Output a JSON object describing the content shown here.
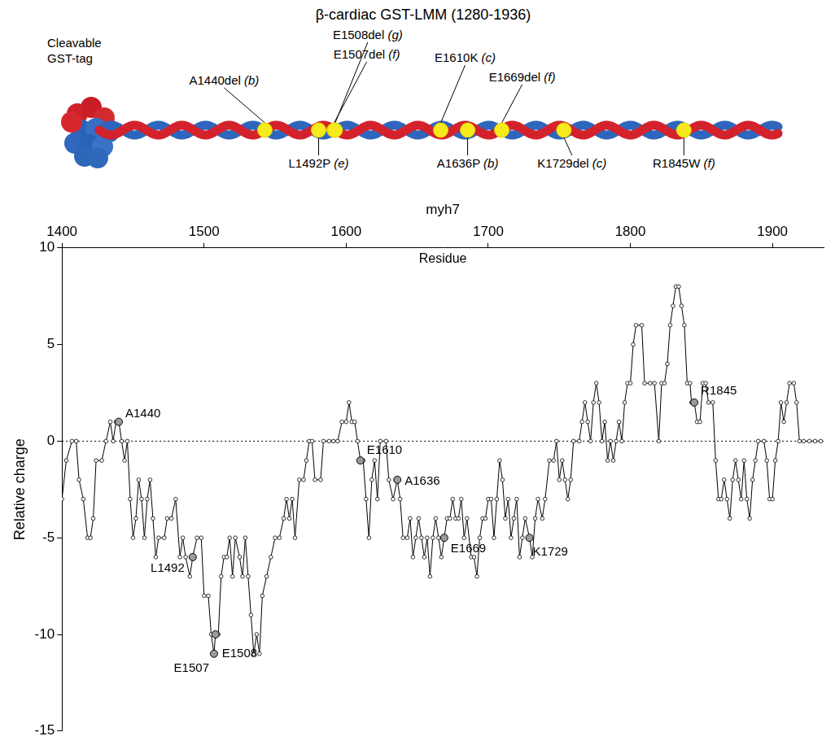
{
  "diagram": {
    "title": "β-cardiac GST-LMM (1280-1936)",
    "tag_label": "Cleavable GST-tag",
    "range": [
      1280,
      1936
    ],
    "mutations": [
      {
        "label": "A1440del",
        "heptad": "(b)",
        "residue": 1440,
        "side": "above"
      },
      {
        "label": "L1492P",
        "heptad": "(e)",
        "residue": 1492,
        "side": "below"
      },
      {
        "label": "E1507del",
        "heptad": "(f)",
        "residue": 1507,
        "side": "above"
      },
      {
        "label": "E1508del",
        "heptad": "(g)",
        "residue": 1508,
        "side": "above"
      },
      {
        "label": "E1610K",
        "heptad": "(c)",
        "residue": 1610,
        "side": "above"
      },
      {
        "label": "A1636P",
        "heptad": "(b)",
        "residue": 1636,
        "side": "below"
      },
      {
        "label": "E1669del",
        "heptad": "(f)",
        "residue": 1669,
        "side": "above"
      },
      {
        "label": "K1729del",
        "heptad": "(c)",
        "residue": 1729,
        "side": "below"
      },
      {
        "label": "R1845W",
        "heptad": "(f)",
        "residue": 1845,
        "side": "below"
      }
    ]
  },
  "chart_data": {
    "type": "line",
    "x_title": "myh7",
    "x_subtitle": "Residue",
    "y_title": "Relative charge",
    "color": "#000000",
    "marker": "circle",
    "line_style": "solid",
    "grid": false,
    "xlim": [
      1400,
      1936
    ],
    "xticks": [
      1400,
      1500,
      1600,
      1700,
      1800,
      1900
    ],
    "ylim": [
      -15,
      10
    ],
    "yticks": [
      -15,
      -10,
      -5,
      0,
      5,
      10
    ],
    "hlines": [
      0
    ],
    "x": [
      1400,
      1403,
      1407,
      1410,
      1412,
      1415,
      1418,
      1420,
      1422,
      1424,
      1428,
      1431,
      1434,
      1436,
      1438,
      1440,
      1442,
      1444,
      1446,
      1448,
      1450,
      1452,
      1454,
      1456,
      1458,
      1460,
      1462,
      1464,
      1466,
      1468,
      1472,
      1474,
      1477,
      1480,
      1483,
      1485,
      1487,
      1490,
      1492,
      1495,
      1498,
      1500,
      1503,
      1505,
      1507,
      1508,
      1510,
      1512,
      1514,
      1516,
      1518,
      1520,
      1522,
      1525,
      1527,
      1529,
      1531,
      1533,
      1535,
      1537,
      1539,
      1541,
      1544,
      1547,
      1550,
      1553,
      1556,
      1558,
      1560,
      1562,
      1564,
      1567,
      1570,
      1572,
      1574,
      1576,
      1578,
      1582,
      1584,
      1588,
      1591,
      1594,
      1597,
      1600,
      1602,
      1604,
      1606,
      1608,
      1610,
      1612,
      1614,
      1616,
      1618,
      1620,
      1622,
      1624,
      1628,
      1630,
      1633,
      1636,
      1638,
      1640,
      1643,
      1645,
      1647,
      1649,
      1651,
      1653,
      1655,
      1657,
      1659,
      1661,
      1663,
      1665,
      1667,
      1669,
      1671,
      1673,
      1675,
      1677,
      1679,
      1681,
      1683,
      1685,
      1688,
      1690,
      1692,
      1694,
      1696,
      1698,
      1700,
      1702,
      1704,
      1706,
      1708,
      1710,
      1712,
      1714,
      1716,
      1718,
      1720,
      1722,
      1724,
      1726,
      1729,
      1731,
      1733,
      1735,
      1738,
      1740,
      1743,
      1746,
      1748,
      1750,
      1752,
      1754,
      1756,
      1758,
      1760,
      1764,
      1766,
      1768,
      1770,
      1772,
      1774,
      1776,
      1778,
      1780,
      1782,
      1784,
      1786,
      1788,
      1790,
      1792,
      1794,
      1796,
      1798,
      1800,
      1802,
      1804,
      1808,
      1810,
      1814,
      1817,
      1820,
      1822,
      1824,
      1826,
      1828,
      1830,
      1832,
      1834,
      1836,
      1838,
      1840,
      1842,
      1843,
      1845,
      1847,
      1849,
      1851,
      1853,
      1855,
      1858,
      1860,
      1862,
      1864,
      1866,
      1868,
      1870,
      1872,
      1874,
      1876,
      1878,
      1880,
      1882,
      1884,
      1886,
      1888,
      1890,
      1894,
      1896,
      1898,
      1900,
      1902,
      1904,
      1906,
      1908,
      1910,
      1912,
      1915,
      1917,
      1919,
      1922,
      1926,
      1930,
      1934
    ],
    "values": [
      -3,
      -1,
      0,
      0,
      -2,
      -3,
      -5,
      -5,
      -4,
      -1,
      -1,
      0,
      1,
      0,
      1,
      1,
      0,
      -1,
      0,
      -3,
      -5,
      -4,
      -2,
      -3,
      -5,
      -3,
      -2,
      -4,
      -6,
      -5,
      -5,
      -4,
      -4,
      -3,
      -6,
      -5,
      -6,
      -7,
      -6,
      -5,
      -5,
      -8,
      -8,
      -10,
      -11,
      -10,
      -10,
      -7,
      -6,
      -6,
      -5,
      -7,
      -5,
      -6,
      -7,
      -5,
      -7,
      -9,
      -11,
      -10,
      -11,
      -8,
      -7,
      -6,
      -5,
      -5,
      -4,
      -3,
      -4,
      -3,
      -5,
      -2,
      -2,
      -1,
      0,
      0,
      -2,
      -2,
      0,
      0,
      0,
      0,
      1,
      1,
      2,
      1,
      1,
      0,
      -1,
      -1,
      -3,
      -5,
      -2,
      -1,
      -3,
      0,
      0,
      -2,
      -3,
      -2,
      -3,
      -5,
      -5,
      -4,
      -6,
      -5,
      -4,
      -5,
      -6,
      -5,
      -7,
      -5,
      -4,
      -5,
      -6,
      -5,
      -4,
      -4,
      -3,
      -4,
      -4,
      -3,
      -5,
      -4,
      -6,
      -6,
      -7,
      -5,
      -4,
      -4,
      -3,
      -3,
      -5,
      -3,
      -1,
      -2,
      -4,
      -3,
      -5,
      -4,
      -3,
      -6,
      -5,
      -4,
      -5,
      -6,
      -4,
      -3,
      -4,
      -3,
      -1,
      -1,
      0,
      -2,
      -1,
      -2,
      -3,
      -2,
      0,
      0,
      1,
      2,
      1,
      0,
      2,
      3,
      2,
      0,
      1,
      -1,
      0,
      -1,
      0,
      1,
      0,
      2,
      3,
      3,
      5,
      6,
      6,
      3,
      3,
      3,
      0,
      3,
      3,
      4,
      6,
      7,
      8,
      8,
      7,
      6,
      3,
      3,
      2,
      2,
      1,
      1,
      3,
      3,
      2,
      2,
      -1,
      -3,
      -3,
      -2,
      -3,
      -4,
      -2,
      -1,
      -2,
      -3,
      -1,
      -3,
      -4,
      -2,
      -1,
      0,
      0,
      -1,
      -3,
      -3,
      -1,
      0,
      2,
      1,
      2,
      3,
      3,
      2,
      0,
      0,
      0,
      0,
      0
    ],
    "highlights": [
      {
        "x": 1440,
        "y": 1,
        "label": "A1440"
      },
      {
        "x": 1492,
        "y": -6,
        "label": "L1492"
      },
      {
        "x": 1507,
        "y": -11,
        "label": "E1507"
      },
      {
        "x": 1508,
        "y": -10,
        "label": "E1508"
      },
      {
        "x": 1610,
        "y": -1,
        "label": "E1610"
      },
      {
        "x": 1636,
        "y": -2,
        "label": "A1636"
      },
      {
        "x": 1669,
        "y": -5,
        "label": "E1669"
      },
      {
        "x": 1729,
        "y": -5,
        "label": "K1729"
      },
      {
        "x": 1845,
        "y": 2,
        "label": "R1845"
      }
    ]
  }
}
